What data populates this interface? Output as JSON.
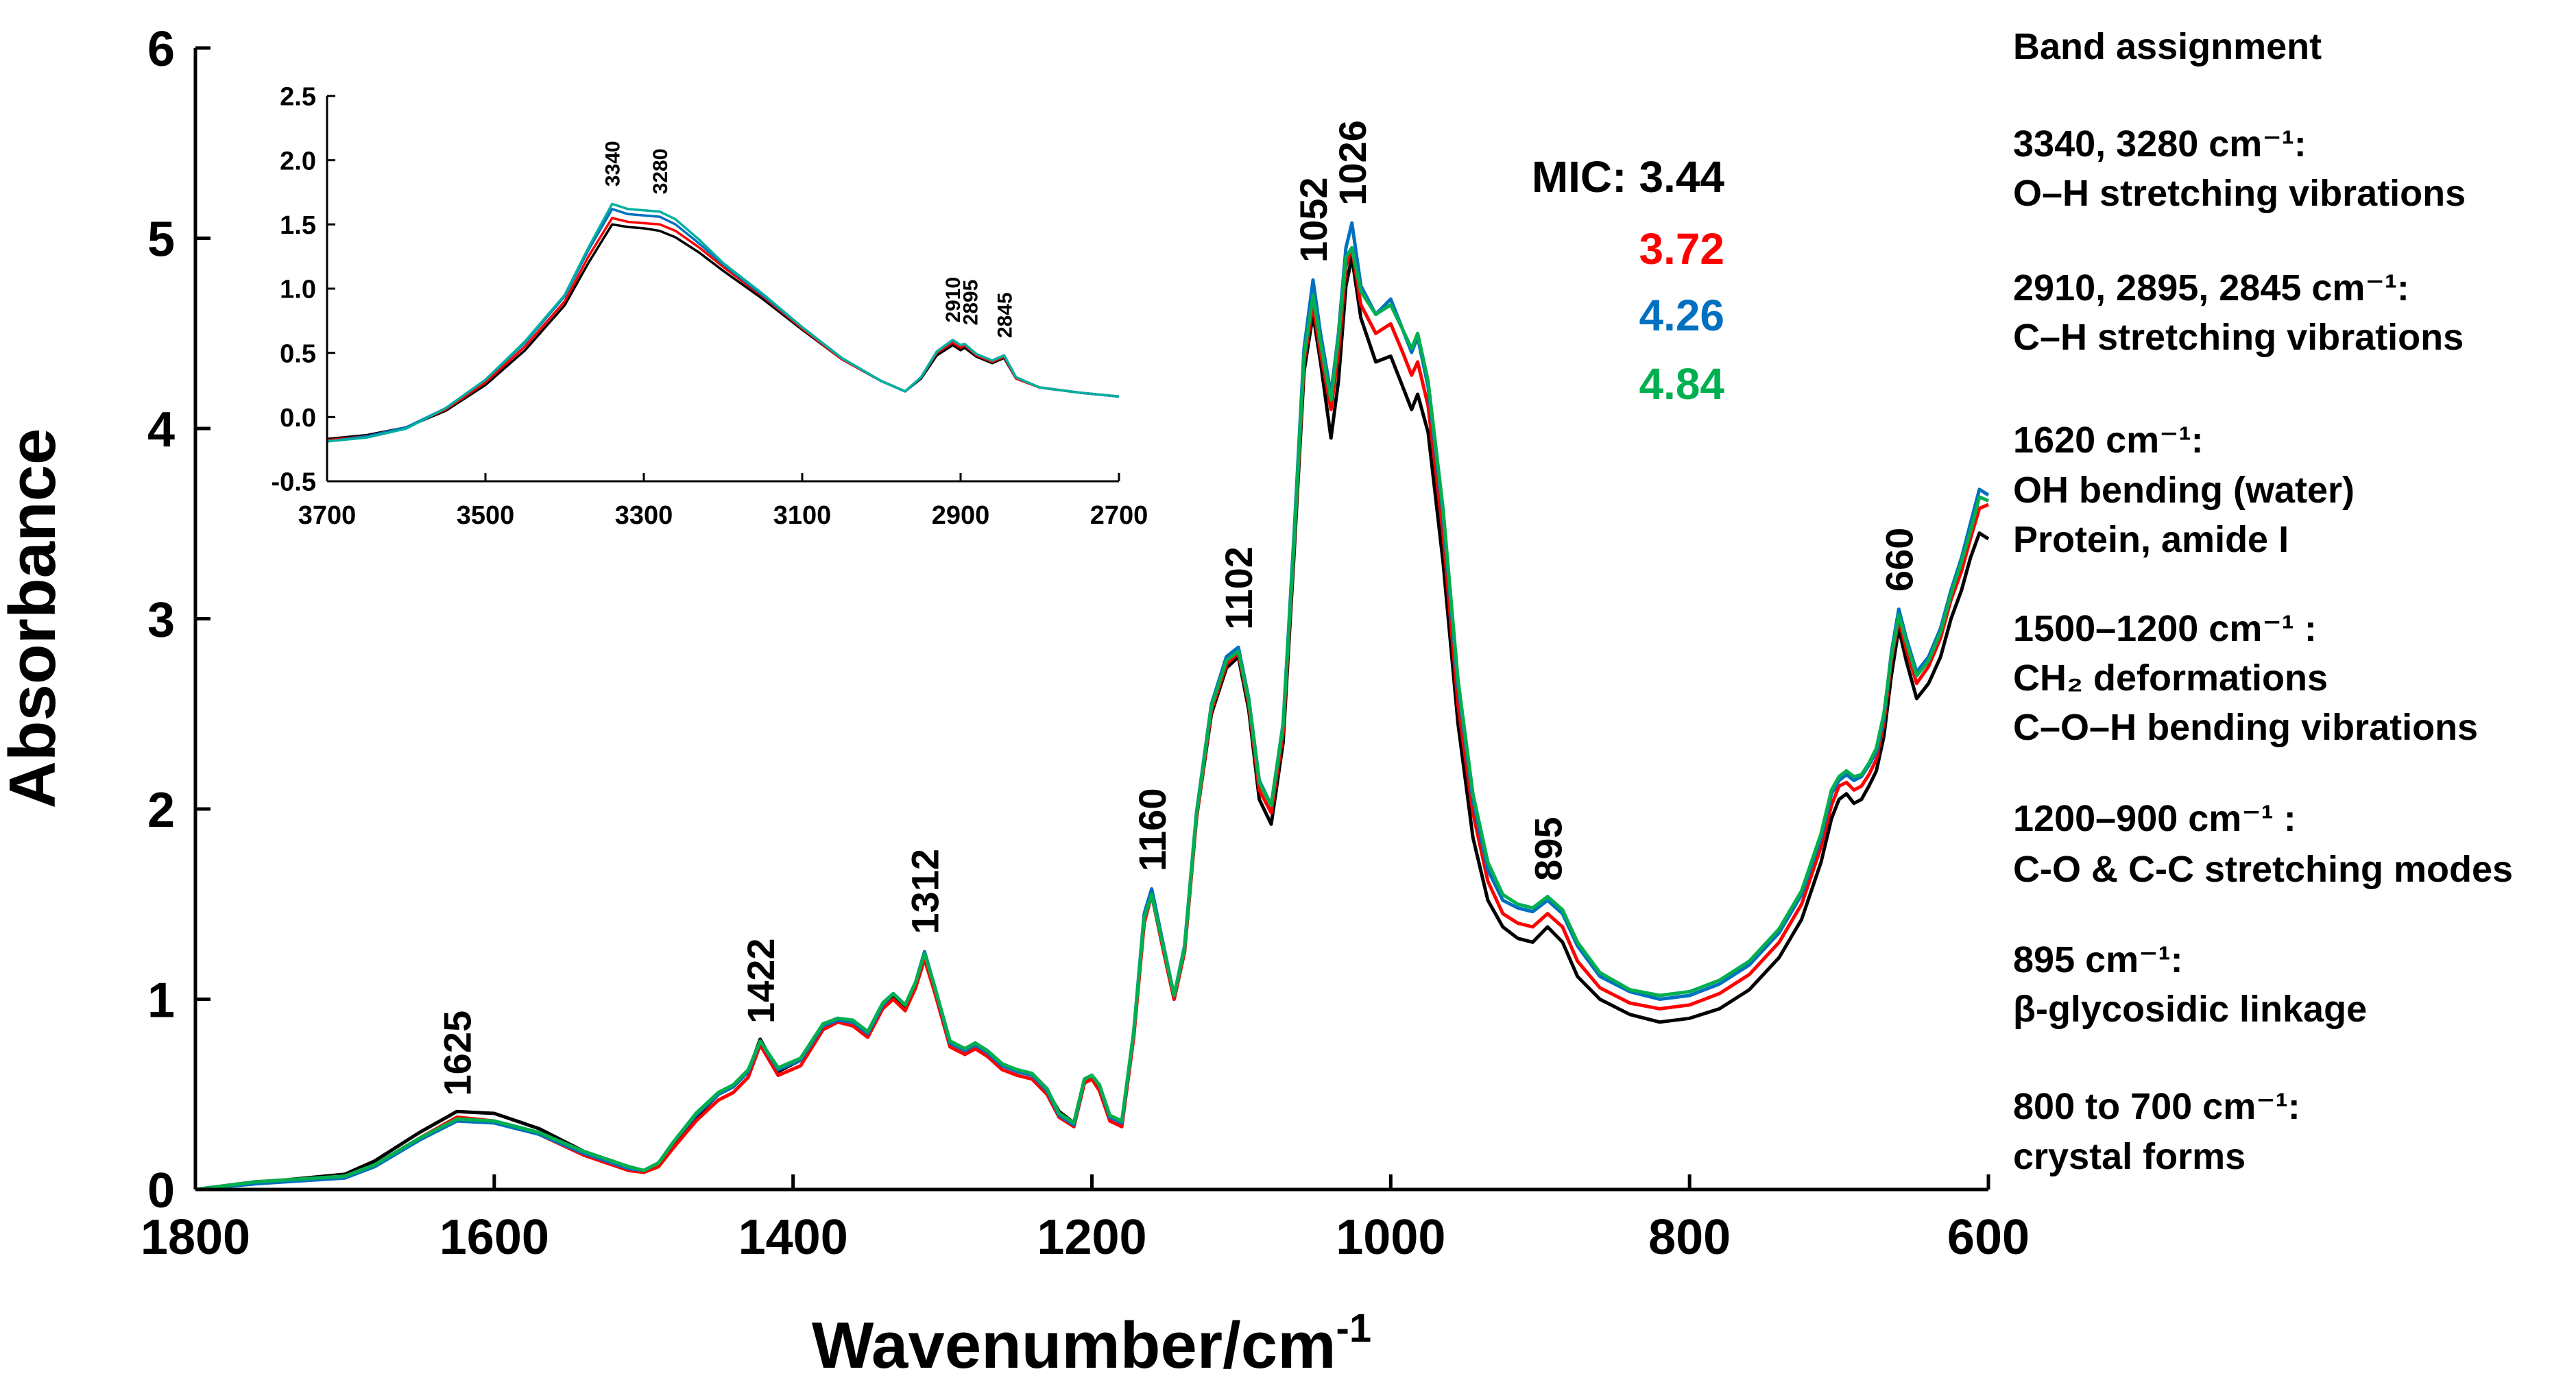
{
  "chart_data": [
    {
      "id": "main",
      "type": "line",
      "xlabel": "Wavenumber/cm",
      "xlabel_sup": "-1",
      "ylabel": "Absorbance",
      "xlim": [
        1800,
        600
      ],
      "ylim": [
        0,
        6
      ],
      "x_ticks": [
        1800,
        1600,
        1400,
        1200,
        1000,
        800,
        600
      ],
      "x_tick_labels": [
        "1800",
        "1600",
        "1400",
        "1200",
        "1000",
        "800",
        "600"
      ],
      "y_ticks": [
        0,
        1,
        2,
        3,
        4,
        5,
        6
      ],
      "y_tick_labels": [
        "0",
        "1",
        "2",
        "3",
        "4",
        "5",
        "6"
      ],
      "x": [
        1800,
        1760,
        1740,
        1700,
        1680,
        1650,
        1625,
        1600,
        1570,
        1540,
        1510,
        1500,
        1490,
        1480,
        1465,
        1450,
        1440,
        1430,
        1422,
        1410,
        1395,
        1380,
        1370,
        1360,
        1350,
        1340,
        1333,
        1325,
        1318,
        1312,
        1305,
        1295,
        1285,
        1278,
        1270,
        1260,
        1250,
        1240,
        1230,
        1222,
        1212,
        1205,
        1200,
        1195,
        1188,
        1180,
        1172,
        1165,
        1160,
        1152,
        1145,
        1138,
        1130,
        1120,
        1110,
        1102,
        1095,
        1088,
        1080,
        1072,
        1065,
        1058,
        1052,
        1047,
        1040,
        1035,
        1030,
        1026,
        1020,
        1010,
        1000,
        992,
        986,
        982,
        975,
        965,
        955,
        945,
        935,
        925,
        915,
        905,
        895,
        885,
        875,
        860,
        840,
        820,
        800,
        780,
        760,
        740,
        725,
        712,
        705,
        700,
        695,
        690,
        685,
        680,
        675,
        670,
        665,
        660,
        655,
        648,
        640,
        632,
        625,
        618,
        612,
        606,
        600
      ],
      "series": [
        {
          "name": "3.44",
          "color": "#000000",
          "values": [
            0.0,
            0.04,
            0.05,
            0.08,
            0.15,
            0.3,
            0.41,
            0.4,
            0.32,
            0.2,
            0.12,
            0.1,
            0.13,
            0.24,
            0.38,
            0.5,
            0.54,
            0.62,
            0.79,
            0.62,
            0.68,
            0.87,
            0.9,
            0.88,
            0.82,
            0.97,
            1.02,
            0.96,
            1.08,
            1.23,
            1.05,
            0.78,
            0.74,
            0.77,
            0.72,
            0.66,
            0.62,
            0.6,
            0.52,
            0.41,
            0.35,
            0.58,
            0.6,
            0.55,
            0.38,
            0.35,
            0.82,
            1.42,
            1.55,
            1.25,
            1.0,
            1.25,
            1.95,
            2.5,
            2.74,
            2.8,
            2.52,
            2.05,
            1.92,
            2.35,
            3.3,
            4.3,
            4.6,
            4.35,
            3.95,
            4.25,
            4.75,
            4.9,
            4.58,
            4.35,
            4.38,
            4.22,
            4.1,
            4.18,
            3.98,
            3.3,
            2.45,
            1.85,
            1.52,
            1.38,
            1.32,
            1.3,
            1.38,
            1.3,
            1.12,
            1.0,
            0.92,
            0.88,
            0.9,
            0.95,
            1.05,
            1.22,
            1.42,
            1.72,
            1.95,
            2.05,
            2.08,
            2.03,
            2.05,
            2.12,
            2.2,
            2.38,
            2.7,
            2.95,
            2.78,
            2.58,
            2.66,
            2.8,
            3.0,
            3.15,
            3.32,
            3.45,
            3.42
          ]
        },
        {
          "name": "3.72",
          "color": "#ff0000",
          "values": [
            0.0,
            0.04,
            0.05,
            0.07,
            0.13,
            0.27,
            0.38,
            0.36,
            0.29,
            0.18,
            0.1,
            0.09,
            0.12,
            0.22,
            0.36,
            0.47,
            0.51,
            0.59,
            0.76,
            0.6,
            0.65,
            0.84,
            0.88,
            0.86,
            0.8,
            0.95,
            1.0,
            0.94,
            1.06,
            1.21,
            1.03,
            0.75,
            0.71,
            0.74,
            0.7,
            0.63,
            0.6,
            0.58,
            0.5,
            0.38,
            0.33,
            0.56,
            0.58,
            0.52,
            0.36,
            0.33,
            0.8,
            1.4,
            1.55,
            1.25,
            1.0,
            1.25,
            1.95,
            2.52,
            2.76,
            2.82,
            2.55,
            2.1,
            1.98,
            2.4,
            3.35,
            4.35,
            4.65,
            4.4,
            4.1,
            4.4,
            4.85,
            4.95,
            4.65,
            4.5,
            4.55,
            4.4,
            4.28,
            4.35,
            4.12,
            3.45,
            2.55,
            1.98,
            1.62,
            1.45,
            1.4,
            1.38,
            1.45,
            1.38,
            1.2,
            1.06,
            0.98,
            0.95,
            0.97,
            1.03,
            1.13,
            1.3,
            1.5,
            1.8,
            2.02,
            2.12,
            2.14,
            2.1,
            2.12,
            2.18,
            2.26,
            2.45,
            2.78,
            3.0,
            2.84,
            2.66,
            2.75,
            2.9,
            3.1,
            3.25,
            3.42,
            3.58,
            3.6
          ]
        },
        {
          "name": "4.26",
          "color": "#0070c0",
          "values": [
            0.0,
            0.03,
            0.04,
            0.06,
            0.12,
            0.26,
            0.36,
            0.35,
            0.29,
            0.19,
            0.11,
            0.1,
            0.14,
            0.25,
            0.39,
            0.5,
            0.54,
            0.62,
            0.78,
            0.63,
            0.68,
            0.86,
            0.89,
            0.88,
            0.82,
            0.97,
            1.03,
            0.97,
            1.09,
            1.25,
            1.06,
            0.77,
            0.73,
            0.76,
            0.72,
            0.65,
            0.62,
            0.6,
            0.52,
            0.39,
            0.34,
            0.58,
            0.6,
            0.55,
            0.38,
            0.35,
            0.83,
            1.45,
            1.58,
            1.28,
            1.02,
            1.28,
            1.98,
            2.55,
            2.8,
            2.85,
            2.58,
            2.15,
            2.02,
            2.45,
            3.4,
            4.42,
            4.78,
            4.5,
            4.18,
            4.5,
            4.95,
            5.08,
            4.75,
            4.6,
            4.68,
            4.52,
            4.4,
            4.48,
            4.22,
            3.55,
            2.65,
            2.05,
            1.68,
            1.52,
            1.48,
            1.46,
            1.52,
            1.45,
            1.28,
            1.12,
            1.04,
            1.0,
            1.02,
            1.08,
            1.18,
            1.35,
            1.55,
            1.85,
            2.08,
            2.15,
            2.18,
            2.15,
            2.17,
            2.23,
            2.3,
            2.48,
            2.82,
            3.05,
            2.9,
            2.72,
            2.8,
            2.95,
            3.15,
            3.32,
            3.5,
            3.68,
            3.65
          ]
        },
        {
          "name": "4.84",
          "color": "#00b050",
          "values": [
            0.0,
            0.04,
            0.05,
            0.07,
            0.13,
            0.27,
            0.37,
            0.36,
            0.3,
            0.2,
            0.12,
            0.1,
            0.14,
            0.25,
            0.4,
            0.51,
            0.55,
            0.63,
            0.78,
            0.64,
            0.69,
            0.87,
            0.9,
            0.89,
            0.83,
            0.98,
            1.03,
            0.97,
            1.09,
            1.24,
            1.06,
            0.78,
            0.74,
            0.77,
            0.73,
            0.66,
            0.63,
            0.61,
            0.53,
            0.4,
            0.35,
            0.58,
            0.6,
            0.55,
            0.39,
            0.36,
            0.83,
            1.43,
            1.55,
            1.27,
            1.02,
            1.27,
            1.97,
            2.54,
            2.78,
            2.83,
            2.57,
            2.14,
            2.02,
            2.44,
            3.36,
            4.38,
            4.7,
            4.45,
            4.15,
            4.48,
            4.9,
            4.95,
            4.72,
            4.6,
            4.65,
            4.52,
            4.42,
            4.5,
            4.25,
            3.58,
            2.68,
            2.08,
            1.72,
            1.55,
            1.5,
            1.48,
            1.54,
            1.47,
            1.3,
            1.14,
            1.05,
            1.02,
            1.04,
            1.1,
            1.2,
            1.37,
            1.57,
            1.87,
            2.1,
            2.17,
            2.2,
            2.17,
            2.18,
            2.24,
            2.32,
            2.5,
            2.8,
            3.02,
            2.88,
            2.7,
            2.78,
            2.93,
            3.13,
            3.3,
            3.46,
            3.64,
            3.62
          ]
        }
      ],
      "peak_labels": [
        {
          "text": "1625",
          "x": 1625,
          "y": 0.42
        },
        {
          "text": "1422",
          "x": 1422,
          "y": 0.8
        },
        {
          "text": "1312",
          "x": 1312,
          "y": 1.27
        },
        {
          "text": "1160",
          "x": 1160,
          "y": 1.6
        },
        {
          "text": "1102",
          "x": 1102,
          "y": 2.87
        },
        {
          "text": "1052",
          "x": 1052,
          "y": 4.8
        },
        {
          "text": "1026",
          "x": 1026,
          "y": 5.1
        },
        {
          "text": "895",
          "x": 895,
          "y": 1.55
        },
        {
          "text": "660",
          "x": 660,
          "y": 3.07
        }
      ],
      "legend": {
        "title": "MIC:",
        "entries": [
          {
            "label": "3.44",
            "color": "#000000"
          },
          {
            "label": "3.72",
            "color": "#ff0000"
          },
          {
            "label": "4.26",
            "color": "#0070c0"
          },
          {
            "label": "4.84",
            "color": "#00b050"
          }
        ]
      }
    },
    {
      "id": "inset",
      "type": "line",
      "xlim": [
        3700,
        2700
      ],
      "ylim": [
        -0.5,
        2.5
      ],
      "x_ticks": [
        3700,
        3500,
        3300,
        3100,
        2900,
        2700
      ],
      "x_tick_labels": [
        "3700",
        "3500",
        "3300",
        "3100",
        "2900",
        "2700"
      ],
      "y_ticks": [
        -0.5,
        0,
        0.5,
        1,
        1.5,
        2,
        2.5
      ],
      "y_tick_labels": [
        "-0.5",
        "0.0",
        "0.5",
        "1.0",
        "1.5",
        "2.0",
        "2.5"
      ],
      "x": [
        3700,
        3650,
        3600,
        3550,
        3500,
        3450,
        3400,
        3370,
        3340,
        3320,
        3300,
        3280,
        3260,
        3230,
        3200,
        3150,
        3100,
        3050,
        3000,
        2970,
        2950,
        2930,
        2910,
        2900,
        2895,
        2880,
        2860,
        2845,
        2830,
        2800,
        2750,
        2700
      ],
      "series": [
        {
          "name": "3.44",
          "color": "#000000",
          "values": [
            -0.17,
            -0.14,
            -0.08,
            0.05,
            0.25,
            0.52,
            0.87,
            1.2,
            1.5,
            1.48,
            1.47,
            1.45,
            1.4,
            1.28,
            1.14,
            0.92,
            0.68,
            0.45,
            0.28,
            0.2,
            0.3,
            0.48,
            0.56,
            0.52,
            0.54,
            0.47,
            0.42,
            0.46,
            0.3,
            0.23,
            0.19,
            0.16
          ]
        },
        {
          "name": "3.72",
          "color": "#ff0000",
          "values": [
            -0.18,
            -0.15,
            -0.08,
            0.06,
            0.27,
            0.55,
            0.9,
            1.25,
            1.55,
            1.52,
            1.51,
            1.5,
            1.45,
            1.32,
            1.17,
            0.94,
            0.69,
            0.45,
            0.28,
            0.2,
            0.31,
            0.5,
            0.58,
            0.54,
            0.56,
            0.48,
            0.43,
            0.47,
            0.3,
            0.23,
            0.19,
            0.16
          ]
        },
        {
          "name": "4.26",
          "color": "#0070c0",
          "values": [
            -0.19,
            -0.15,
            -0.08,
            0.07,
            0.29,
            0.58,
            0.94,
            1.3,
            1.62,
            1.58,
            1.57,
            1.56,
            1.5,
            1.35,
            1.19,
            0.95,
            0.7,
            0.46,
            0.28,
            0.2,
            0.31,
            0.51,
            0.6,
            0.56,
            0.57,
            0.49,
            0.44,
            0.48,
            0.31,
            0.23,
            0.19,
            0.16
          ]
        },
        {
          "name": "4.84",
          "color": "#00b0a0",
          "values": [
            -0.19,
            -0.16,
            -0.09,
            0.07,
            0.29,
            0.59,
            0.95,
            1.32,
            1.66,
            1.62,
            1.61,
            1.6,
            1.54,
            1.38,
            1.2,
            0.96,
            0.7,
            0.46,
            0.28,
            0.2,
            0.31,
            0.51,
            0.6,
            0.56,
            0.57,
            0.49,
            0.44,
            0.48,
            0.31,
            0.23,
            0.19,
            0.16
          ]
        }
      ],
      "peak_labels": [
        {
          "text": "3340",
          "x": 3340,
          "y": 1.72
        },
        {
          "text": "3280",
          "x": 3280,
          "y": 1.66
        },
        {
          "text": "2910",
          "x": 2910,
          "y": 0.66
        },
        {
          "text": "2895",
          "x": 2888,
          "y": 0.64
        },
        {
          "text": "2845",
          "x": 2845,
          "y": 0.54
        }
      ]
    }
  ],
  "band_assignment": {
    "title": "Band assignment",
    "groups": [
      {
        "id": "g1",
        "lines": [
          "3340, 3280 cm⁻¹:",
          "O–H stretching vibrations"
        ]
      },
      {
        "id": "g2",
        "lines": [
          "2910, 2895, 2845 cm⁻¹:",
          "C–H stretching vibrations"
        ]
      },
      {
        "id": "g3",
        "lines": [
          "1620 cm⁻¹:",
          "OH bending (water)",
          "Protein, amide I"
        ]
      },
      {
        "id": "g4",
        "lines": [
          "1500–1200 cm⁻¹ :",
          "CH₂ deformations",
          "C–O–H bending vibrations"
        ]
      },
      {
        "id": "g5",
        "lines": [
          "1200–900 cm⁻¹ :",
          "C-O & C-C stretching modes"
        ]
      },
      {
        "id": "g6",
        "lines": [
          "895 cm⁻¹:",
          "β-glycosidic linkage"
        ]
      },
      {
        "id": "g7",
        "lines": [
          "800 to 700 cm⁻¹:",
          "crystal forms"
        ]
      }
    ]
  }
}
